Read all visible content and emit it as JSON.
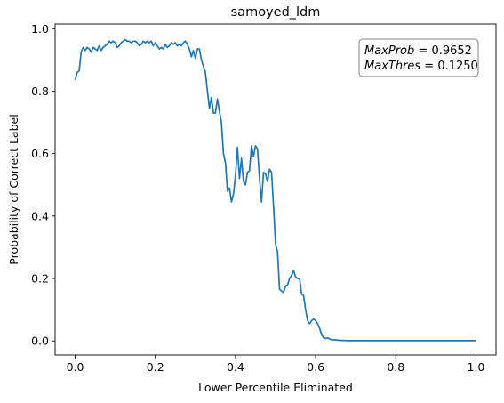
{
  "chart_data": {
    "type": "line",
    "title": "samoyed_ldm",
    "xlabel": "Lower Percentile Eliminated",
    "ylabel": "Probability of Correct Label",
    "xlim": [
      -0.05,
      1.05
    ],
    "ylim": [
      -0.045,
      1.015
    ],
    "xticks": [
      "0.0",
      "0.2",
      "0.4",
      "0.6",
      "0.8",
      "1.0"
    ],
    "yticks": [
      "0.0",
      "0.2",
      "0.4",
      "0.6",
      "0.8",
      "1.0"
    ],
    "grid": false,
    "line_color": "#1f77b4",
    "annotation": {
      "lines": [
        {
          "name": "MaxProb",
          "value": "0.9652"
        },
        {
          "name": "MaxThres",
          "value": "0.1250"
        }
      ],
      "position": "top-right"
    },
    "series": [
      {
        "x": [
          0.0,
          0.005,
          0.01,
          0.015,
          0.02,
          0.025,
          0.03,
          0.035,
          0.04,
          0.045,
          0.05,
          0.055,
          0.06,
          0.065,
          0.07,
          0.075,
          0.08,
          0.085,
          0.09,
          0.095,
          0.1,
          0.105,
          0.11,
          0.115,
          0.12,
          0.125,
          0.13,
          0.135,
          0.14,
          0.145,
          0.15,
          0.155,
          0.16,
          0.165,
          0.17,
          0.175,
          0.18,
          0.185,
          0.19,
          0.195,
          0.2,
          0.205,
          0.21,
          0.215,
          0.22,
          0.225,
          0.23,
          0.235,
          0.24,
          0.245,
          0.25,
          0.255,
          0.26,
          0.265,
          0.27,
          0.275,
          0.28,
          0.285,
          0.29,
          0.295,
          0.3,
          0.305,
          0.31,
          0.315,
          0.32,
          0.325,
          0.33,
          0.335,
          0.34,
          0.345,
          0.35,
          0.355,
          0.36,
          0.365,
          0.37,
          0.375,
          0.38,
          0.385,
          0.39,
          0.395,
          0.4,
          0.405,
          0.41,
          0.415,
          0.42,
          0.425,
          0.43,
          0.435,
          0.44,
          0.445,
          0.45,
          0.455,
          0.46,
          0.465,
          0.47,
          0.475,
          0.48,
          0.485,
          0.49,
          0.495,
          0.5,
          0.505,
          0.51,
          0.515,
          0.52,
          0.525,
          0.53,
          0.535,
          0.54,
          0.545,
          0.55,
          0.555,
          0.56,
          0.565,
          0.57,
          0.575,
          0.58,
          0.585,
          0.59,
          0.595,
          0.6,
          0.605,
          0.61,
          0.615,
          0.62,
          0.625,
          0.63,
          0.635,
          0.64,
          0.65,
          0.66,
          0.68,
          0.7,
          0.75,
          0.8,
          0.85,
          0.9,
          0.95,
          1.0
        ],
        "y": [
          0.835,
          0.86,
          0.865,
          0.925,
          0.94,
          0.93,
          0.94,
          0.935,
          0.925,
          0.94,
          0.935,
          0.93,
          0.945,
          0.93,
          0.94,
          0.945,
          0.95,
          0.96,
          0.955,
          0.96,
          0.955,
          0.94,
          0.945,
          0.955,
          0.96,
          0.965,
          0.96,
          0.96,
          0.955,
          0.96,
          0.96,
          0.955,
          0.945,
          0.95,
          0.96,
          0.955,
          0.96,
          0.955,
          0.96,
          0.945,
          0.955,
          0.945,
          0.935,
          0.94,
          0.935,
          0.95,
          0.94,
          0.945,
          0.955,
          0.95,
          0.955,
          0.945,
          0.95,
          0.945,
          0.955,
          0.96,
          0.95,
          0.935,
          0.91,
          0.93,
          0.905,
          0.935,
          0.935,
          0.9,
          0.88,
          0.86,
          0.8,
          0.745,
          0.78,
          0.73,
          0.73,
          0.775,
          0.735,
          0.7,
          0.6,
          0.57,
          0.48,
          0.49,
          0.445,
          0.47,
          0.53,
          0.62,
          0.52,
          0.585,
          0.51,
          0.5,
          0.54,
          0.545,
          0.625,
          0.59,
          0.625,
          0.615,
          0.52,
          0.445,
          0.54,
          0.535,
          0.51,
          0.55,
          0.54,
          0.43,
          0.31,
          0.285,
          0.165,
          0.16,
          0.155,
          0.175,
          0.18,
          0.2,
          0.21,
          0.225,
          0.205,
          0.2,
          0.2,
          0.15,
          0.145,
          0.1,
          0.065,
          0.055,
          0.065,
          0.07,
          0.065,
          0.055,
          0.04,
          0.02,
          0.01,
          0.008,
          0.01,
          0.006,
          0.004,
          0.003,
          0.002,
          0.001,
          0.001,
          0.001,
          0.001,
          0.001,
          0.001,
          0.001,
          0.001
        ]
      }
    ]
  }
}
